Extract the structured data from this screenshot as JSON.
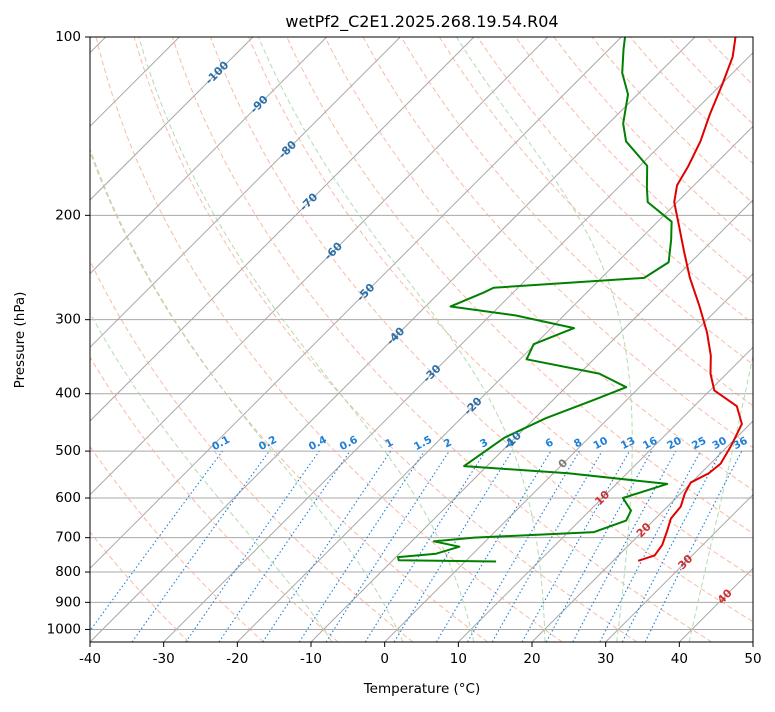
{
  "chart_data": {
    "type": "skew-t",
    "title": "wetPf2_C2E1.2025.268.19.54.R04",
    "xlabel": "Temperature (°C)",
    "ylabel": "Pressure (hPa)",
    "xlim": [
      -40,
      50
    ],
    "ylim": [
      1050,
      100
    ],
    "y_scale": "log",
    "grid": true,
    "x_ticks": [
      -40,
      -30,
      -20,
      -10,
      0,
      10,
      20,
      30,
      40,
      50
    ],
    "y_ticks": [
      100,
      200,
      300,
      400,
      500,
      600,
      700,
      800,
      900,
      1000
    ],
    "colors": {
      "temperature": "#e00000",
      "dewpoint": "#008000",
      "isotherm": "#a8a8a8",
      "dry_adiabat": "#f5a487",
      "moist_adiabat": "#a8d8a8",
      "mixing_ratio": "#1e7fd8",
      "lcl_guide": "#d8b894"
    },
    "series": [
      {
        "key": "temperature",
        "points": [
          [
            766,
            23.4
          ],
          [
            750,
            24.9
          ],
          [
            720,
            24.5
          ],
          [
            680,
            23.2
          ],
          [
            650,
            22.1
          ],
          [
            620,
            21.8
          ],
          [
            590,
            20.6
          ],
          [
            565,
            19.9
          ],
          [
            545,
            21.1
          ],
          [
            525,
            21.4
          ],
          [
            490,
            20.4
          ],
          [
            450,
            18.9
          ],
          [
            420,
            15.8
          ],
          [
            395,
            10.6
          ],
          [
            370,
            7.8
          ],
          [
            345,
            5.4
          ],
          [
            315,
            1.7
          ],
          [
            285,
            -2.8
          ],
          [
            255,
            -8.0
          ],
          [
            230,
            -12.4
          ],
          [
            210,
            -16.2
          ],
          [
            190,
            -20.4
          ],
          [
            178,
            -22.3
          ],
          [
            165,
            -23.4
          ],
          [
            150,
            -25.1
          ],
          [
            135,
            -27.5
          ],
          [
            120,
            -29.9
          ],
          [
            108,
            -32.2
          ],
          [
            100,
            -34.5
          ]
        ]
      },
      {
        "key": "dewpoint",
        "points": [
          [
            768,
            4.2
          ],
          [
            764,
            -9.2
          ],
          [
            755,
            -9.7
          ],
          [
            745,
            -5.0
          ],
          [
            725,
            -2.8
          ],
          [
            710,
            -7.0
          ],
          [
            700,
            -2.0
          ],
          [
            685,
            13.5
          ],
          [
            655,
            16.3
          ],
          [
            630,
            15.6
          ],
          [
            600,
            12.8
          ],
          [
            568,
            16.9
          ],
          [
            545,
            2.0
          ],
          [
            530,
            -13.1
          ],
          [
            505,
            -12.4
          ],
          [
            475,
            -11.5
          ],
          [
            440,
            -8.5
          ],
          [
            410,
            -4.5
          ],
          [
            390,
            -1.8
          ],
          [
            370,
            -7.3
          ],
          [
            350,
            -19.1
          ],
          [
            330,
            -20.2
          ],
          [
            310,
            -16.9
          ],
          [
            295,
            -26.6
          ],
          [
            285,
            -36.6
          ],
          [
            270,
            -34.0
          ],
          [
            265,
            -33.3
          ],
          [
            255,
            -14.2
          ],
          [
            240,
            -13.0
          ],
          [
            220,
            -15.7
          ],
          [
            205,
            -18.1
          ],
          [
            190,
            -24.0
          ],
          [
            180,
            -26.0
          ],
          [
            165,
            -29.0
          ],
          [
            150,
            -35.2
          ],
          [
            140,
            -38.0
          ],
          [
            125,
            -41.3
          ],
          [
            115,
            -45.0
          ],
          [
            105,
            -48.0
          ],
          [
            100,
            -49.5
          ]
        ]
      }
    ],
    "isotherms": [
      -120,
      -110,
      -100,
      -90,
      -80,
      -70,
      -60,
      -50,
      -40,
      -30,
      -20,
      -10,
      0,
      10,
      20,
      30,
      40,
      50
    ],
    "dry_adiabats_c": [
      -30,
      -20,
      -10,
      0,
      10,
      20,
      30,
      40,
      50,
      60,
      70,
      80,
      90,
      100,
      110,
      120,
      130,
      140,
      150,
      160,
      170,
      180
    ],
    "moist_adiabats_c": [
      -10,
      0,
      10,
      20,
      30,
      40
    ],
    "mixing_ratio_g_per_kg": [
      0.1,
      0.2,
      0.4,
      0.6,
      1,
      1.5,
      2,
      3,
      4,
      6,
      8,
      10,
      13,
      16,
      20,
      25,
      30,
      36
    ],
    "mixing_ratio_labels": [
      "0.1",
      "0.2",
      "0.4",
      "0.6",
      "1",
      "1.5",
      "2",
      "3",
      "4",
      "6",
      "8",
      "10",
      "13",
      "16",
      "20",
      "25",
      "30",
      "36"
    ],
    "blue_isotherm_labels": [
      {
        "text": "-100",
        "p": 115
      },
      {
        "text": "-90",
        "p": 130
      },
      {
        "text": "-80",
        "p": 155
      },
      {
        "text": "-70",
        "p": 190
      },
      {
        "text": "-60",
        "p": 230
      },
      {
        "text": "-50",
        "p": 270
      },
      {
        "text": "-40",
        "p": 320
      },
      {
        "text": "-30",
        "p": 370
      },
      {
        "text": "-20",
        "p": 420
      },
      {
        "text": "-10",
        "p": 480
      }
    ],
    "gray_isotherm_label": {
      "text": "0",
      "p": 525
    },
    "red_isotherm_labels": [
      {
        "text": "10",
        "p": 600
      },
      {
        "text": "20",
        "p": 680
      },
      {
        "text": "30",
        "p": 770
      },
      {
        "text": "40",
        "p": 880
      }
    ]
  }
}
